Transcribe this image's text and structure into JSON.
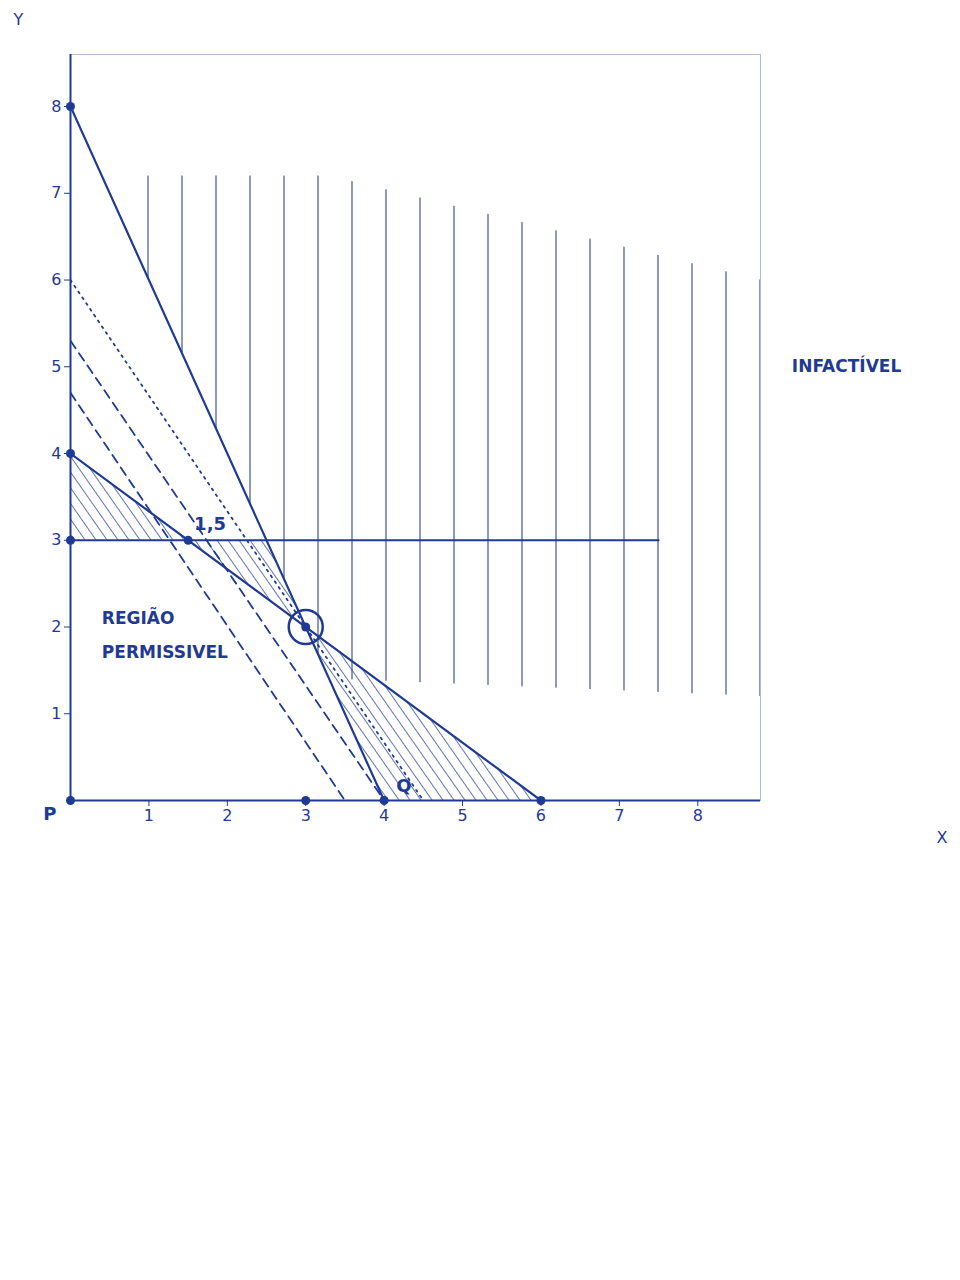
{
  "chart_data": {
    "type": "line",
    "x_label": "X",
    "y_label": "Y",
    "xlim": [
      0,
      8.8
    ],
    "ylim": [
      0,
      8.6
    ],
    "xticks": [
      1,
      2,
      3,
      4,
      5,
      6,
      7,
      8
    ],
    "yticks": [
      1,
      2,
      3,
      4,
      5,
      6,
      7,
      8
    ],
    "color": "#1f3a93",
    "series": [
      {
        "x": [
          0,
          4
        ],
        "values": [
          8,
          0
        ],
        "line_style": "solid"
      },
      {
        "x": [
          0,
          6
        ],
        "values": [
          4,
          0
        ],
        "line_style": "solid"
      },
      {
        "x": [
          0,
          7.5
        ],
        "values": [
          3,
          3
        ],
        "line_style": "solid"
      },
      {
        "x": [
          0,
          3.5
        ],
        "values": [
          4.7,
          0
        ],
        "line_style": "dashed"
      },
      {
        "x": [
          0,
          4
        ],
        "values": [
          5.3,
          0
        ],
        "line_style": "dashed"
      },
      {
        "x": [
          0,
          4.5
        ],
        "values": [
          6,
          0
        ],
        "line_style": "dotted"
      }
    ],
    "hatched_regions": [
      {
        "x": [
          0,
          1.5
        ],
        "low": [
          3,
          3
        ],
        "high": [
          4,
          3
        ]
      },
      {
        "x": [
          1.5,
          2.5,
          3
        ],
        "low": [
          3,
          2.333,
          2
        ],
        "high": [
          3,
          3,
          2
        ]
      },
      {
        "x": [
          3,
          4,
          6
        ],
        "low": [
          2,
          0,
          0
        ],
        "high": [
          2,
          1.333,
          0
        ]
      }
    ],
    "infeasible_region": {
      "x": [
        0.7,
        3.3,
        8.8
      ],
      "low": [
        6.6,
        1.4,
        1.2
      ],
      "high": [
        7.2,
        7.2,
        6.0
      ]
    },
    "points": {
      "x": [
        0,
        0,
        0,
        1.5,
        3,
        3,
        4,
        6,
        0
      ],
      "values": [
        8,
        4,
        3,
        3,
        2,
        0,
        0,
        0,
        0
      ]
    },
    "point_labels": [
      {
        "text": "P",
        "x": 0,
        "y": 0
      },
      {
        "text": "Q",
        "x": 4,
        "y": 0
      },
      {
        "text": "1,5",
        "x": 1.5,
        "y": 3
      }
    ],
    "highlight": {
      "x": 3,
      "y": 2
    },
    "annotations": [
      {
        "text": "REGIÃO",
        "x": 0.4,
        "y": 2.1
      },
      {
        "text": "PERMISSIVEL",
        "x": 0.4,
        "y": 1.7
      },
      {
        "text": "INFACTÍVEL",
        "x": 9.2,
        "y": 5.0
      }
    ]
  }
}
